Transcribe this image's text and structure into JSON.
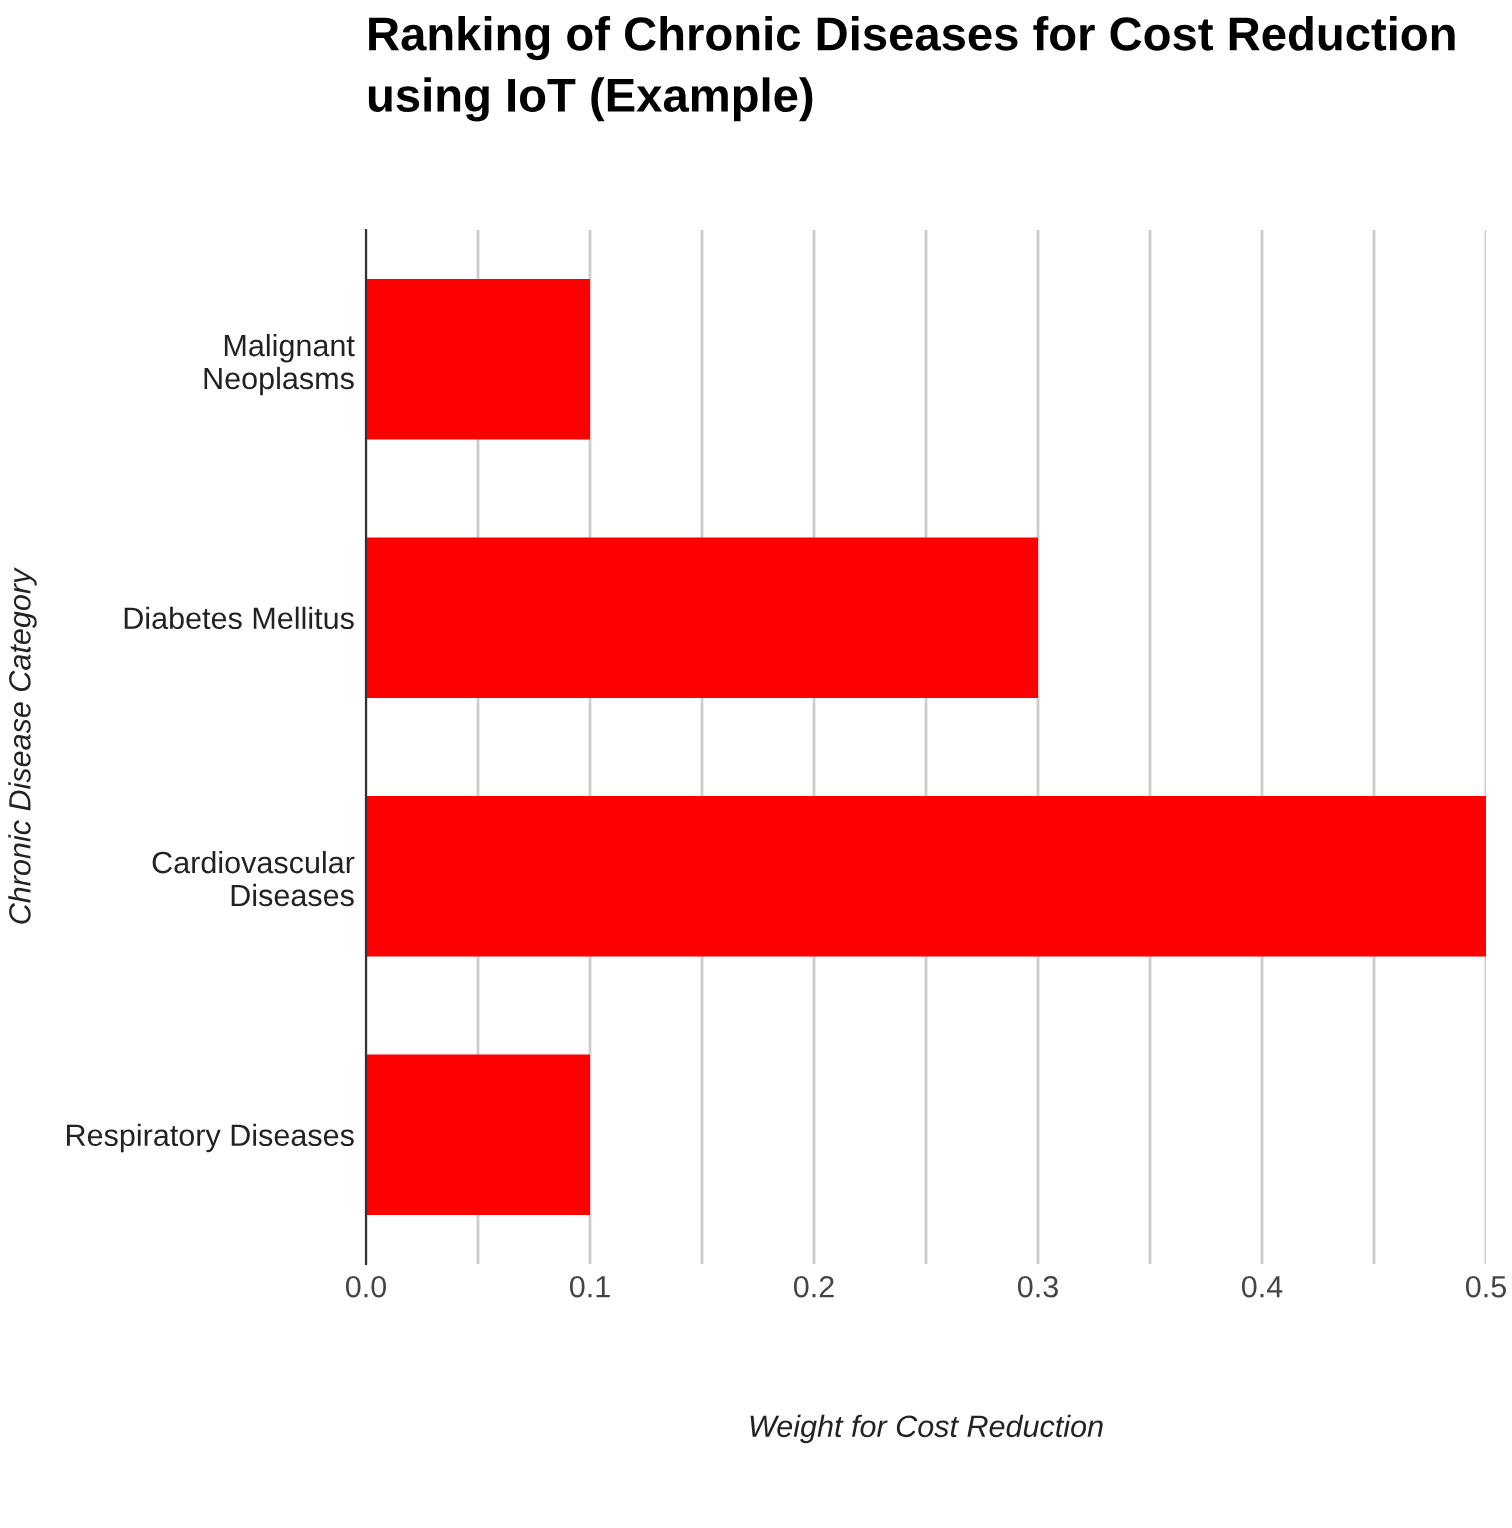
{
  "chart_data": {
    "type": "bar",
    "orientation": "horizontal",
    "title": "Ranking of Chronic Diseases for Cost Reduction using IoT (Example)",
    "xlabel": "Weight for Cost Reduction",
    "ylabel": "Chronic Disease Category",
    "categories": [
      "Malignant\nNeoplasms",
      "Diabetes Mellitus",
      "Cardiovascular\nDiseases",
      "Respiratory Diseases"
    ],
    "values": [
      0.1,
      0.3,
      0.5,
      0.1
    ],
    "color": "#ff0000",
    "xlim": [
      0,
      0.5
    ],
    "xticks": [
      {
        "value": 0,
        "label": "0.0"
      },
      {
        "value": 0.05,
        "label": null
      },
      0.1,
      {
        "value": 0.15,
        "label": null
      },
      0.2,
      {
        "value": 0.25,
        "label": null
      },
      0.3,
      {
        "value": 0.35,
        "label": null
      },
      0.4,
      {
        "value": 0.45,
        "label": null
      },
      0.5
    ],
    "grid": "x",
    "legend": false
  }
}
